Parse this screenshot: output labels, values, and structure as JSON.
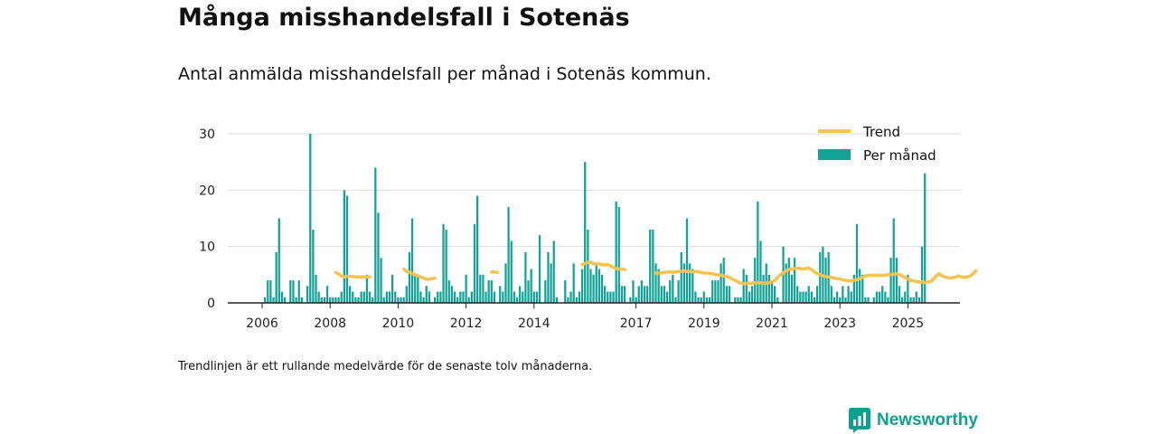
{
  "title": "Många misshandelsfall i Sotenäs",
  "subtitle": "Antal anmälda misshandelsfall per månad i Sotenäs kommun.",
  "footnote": "Trendlinjen är ett rullande medelvärde för de senaste tolv månaderna.",
  "brand": {
    "name": "Newsworthy",
    "icon": "newsworthy-logo-icon",
    "color": "#0f9f91"
  },
  "chart_data": {
    "type": "bar",
    "title": "",
    "xlabel": "",
    "ylabel": "",
    "ylim": [
      0,
      30
    ],
    "yticks": [
      0,
      10,
      20,
      30
    ],
    "xticks": [
      "2006",
      "2008",
      "2010",
      "2012",
      "2014",
      "2017",
      "2019",
      "2021",
      "2023",
      "2025"
    ],
    "xtick_dates": [
      "2006-01",
      "2008-01",
      "2010-01",
      "2012-01",
      "2014-01",
      "2017-01",
      "2019-01",
      "2021-01",
      "2023-01",
      "2025-01"
    ],
    "grid": "horizontal",
    "legend": {
      "position": "top-right",
      "entries": [
        "Trend",
        "Per månad"
      ]
    },
    "colors": {
      "bars": "#12a396",
      "trend": "#f5c350",
      "grid": "#dddddd",
      "axis": "#222222"
    },
    "start_month": "2006-01",
    "series": [
      {
        "name": "Per månad",
        "type": "bar",
        "values": [
          0,
          1,
          4,
          4,
          1,
          9,
          15,
          2,
          1,
          0,
          4,
          4,
          1,
          4,
          1,
          0,
          3,
          30,
          13,
          5,
          2,
          1,
          1,
          3,
          1,
          1,
          1,
          1,
          2,
          20,
          19,
          3,
          2,
          1,
          1,
          2,
          2,
          5,
          2,
          1,
          24,
          16,
          8,
          1,
          2,
          2,
          5,
          2,
          1,
          1,
          1,
          3,
          9,
          15,
          5,
          5,
          2,
          1,
          3,
          2,
          0,
          1,
          2,
          2,
          14,
          13,
          4,
          3,
          2,
          1,
          2,
          2,
          5,
          1,
          2,
          14,
          19,
          5,
          5,
          2,
          4,
          4,
          2,
          0,
          3,
          2,
          7,
          17,
          11,
          2,
          1,
          3,
          2,
          9,
          4,
          6,
          2,
          2,
          12,
          0,
          4,
          9,
          7,
          11,
          1,
          0,
          0,
          4,
          1,
          2,
          7,
          1,
          2,
          6,
          25,
          13,
          6,
          5,
          7,
          6,
          5,
          3,
          2,
          2,
          2,
          18,
          17,
          3,
          3,
          0,
          1,
          4,
          1,
          3,
          4,
          3,
          3,
          13,
          13,
          7,
          6,
          3,
          3,
          2,
          4,
          5,
          1,
          4,
          9,
          7,
          15,
          7,
          6,
          2,
          1,
          1,
          2,
          1,
          1,
          4,
          4,
          4,
          7,
          8,
          3,
          3,
          0,
          1,
          1,
          1,
          6,
          5,
          2,
          3,
          8,
          18,
          11,
          5,
          7,
          5,
          4,
          3,
          1,
          0,
          10,
          7,
          8,
          5,
          8,
          3,
          2,
          2,
          2,
          3,
          2,
          1,
          3,
          9,
          10,
          8,
          9,
          3,
          1,
          2,
          1,
          3,
          1,
          3,
          2,
          5,
          14,
          6,
          5,
          1,
          1,
          0,
          1,
          2,
          2,
          3,
          2,
          1,
          8,
          15,
          8,
          3,
          1,
          2,
          5,
          1,
          1,
          2,
          1,
          10,
          23
        ]
      },
      {
        "name": "Trend",
        "type": "line",
        "segments": [
          {
            "start": "2008-03",
            "values": [
              5.4,
              5.1,
              4.8,
              4.6,
              4.7,
              4.7,
              4.7,
              4.6,
              4.6,
              4.6,
              4.6,
              4.6,
              4.6
            ]
          },
          {
            "start": "2010-03",
            "values": [
              6.0,
              5.6,
              5.4,
              5.2,
              5.0,
              4.8,
              4.6,
              4.4,
              4.2,
              4.2,
              4.3,
              4.4
            ]
          },
          {
            "start": "2012-10",
            "values": [
              5.5,
              5.5,
              5.4
            ]
          },
          {
            "start": "2015-06",
            "values": [
              6.8,
              7.0,
              7.2,
              7.2,
              7.0,
              6.9,
              6.9,
              6.8,
              6.7,
              6.8,
              6.6,
              6.3,
              6.1,
              6.0,
              6.0,
              5.9
            ]
          },
          {
            "start": "2017-08",
            "values": [
              5.3,
              5.3,
              5.3,
              5.4,
              5.5,
              5.5,
              5.4,
              5.5,
              5.6,
              5.6,
              5.7,
              5.6,
              5.6,
              5.5,
              5.6,
              5.5,
              5.4,
              5.3,
              5.3,
              5.2,
              5.2,
              5.0,
              5.0,
              4.9,
              4.8,
              4.7,
              4.5,
              4.2,
              4.0,
              3.7,
              3.5,
              3.4,
              3.4,
              3.5,
              3.5,
              3.6,
              3.6,
              3.6,
              3.5,
              3.5,
              3.6,
              3.7,
              4.0,
              4.5,
              5.0,
              5.3,
              5.7,
              5.9,
              6.0,
              6.1,
              6.2,
              6.1,
              6.0,
              6.1,
              6.2,
              5.9,
              5.5,
              5.2,
              5.0,
              4.8,
              4.7,
              4.6,
              4.5,
              4.4,
              4.3,
              4.2,
              4.1,
              4.0,
              3.9,
              3.9,
              4.0,
              4.1,
              4.3,
              4.5,
              4.8,
              4.9,
              4.9,
              4.9,
              4.9,
              4.9,
              4.9,
              4.9,
              5.0,
              5.0,
              5.1,
              5.2,
              5.0,
              4.8,
              4.5,
              4.2,
              4.0,
              3.9,
              3.8,
              3.7,
              3.7,
              3.6,
              3.7,
              3.8,
              4.2,
              4.8,
              5.2,
              4.8,
              4.6,
              4.5,
              4.4,
              4.5,
              4.6,
              4.8,
              4.6,
              4.5,
              4.6,
              4.8,
              5.2,
              5.7
            ]
          }
        ]
      }
    ]
  }
}
